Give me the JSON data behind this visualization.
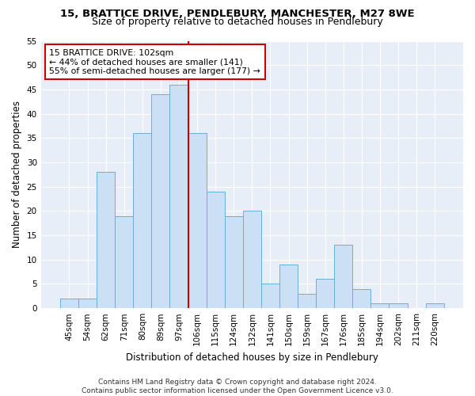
{
  "title": "15, BRATTICE DRIVE, PENDLEBURY, MANCHESTER, M27 8WE",
  "subtitle": "Size of property relative to detached houses in Pendlebury",
  "xlabel": "Distribution of detached houses by size in Pendlebury",
  "ylabel": "Number of detached properties",
  "bar_labels": [
    "45sqm",
    "54sqm",
    "62sqm",
    "71sqm",
    "80sqm",
    "89sqm",
    "97sqm",
    "106sqm",
    "115sqm",
    "124sqm",
    "132sqm",
    "141sqm",
    "150sqm",
    "159sqm",
    "167sqm",
    "176sqm",
    "185sqm",
    "194sqm",
    "202sqm",
    "211sqm",
    "220sqm"
  ],
  "bar_heights": [
    2,
    2,
    28,
    19,
    36,
    44,
    46,
    36,
    24,
    19,
    20,
    5,
    9,
    3,
    6,
    13,
    4,
    1,
    1,
    0,
    1
  ],
  "bar_color": "#cce0f5",
  "bar_edgecolor": "#6aaed6",
  "highlight_index": 6,
  "highlight_color": "#cc0000",
  "annotation_text": "15 BRATTICE DRIVE: 102sqm\n← 44% of detached houses are smaller (141)\n55% of semi-detached houses are larger (177) →",
  "annotation_box_color": "#ffffff",
  "annotation_box_edgecolor": "#cc0000",
  "ylim": [
    0,
    55
  ],
  "yticks": [
    0,
    5,
    10,
    15,
    20,
    25,
    30,
    35,
    40,
    45,
    50,
    55
  ],
  "bg_color": "#e8eef7",
  "fig_color": "#ffffff",
  "footer": "Contains HM Land Registry data © Crown copyright and database right 2024.\nContains public sector information licensed under the Open Government Licence v3.0.",
  "title_fontsize": 9.5,
  "subtitle_fontsize": 9,
  "xlabel_fontsize": 8.5,
  "ylabel_fontsize": 8.5,
  "tick_fontsize": 7.5,
  "footer_fontsize": 6.5,
  "annotation_fontsize": 7.8
}
